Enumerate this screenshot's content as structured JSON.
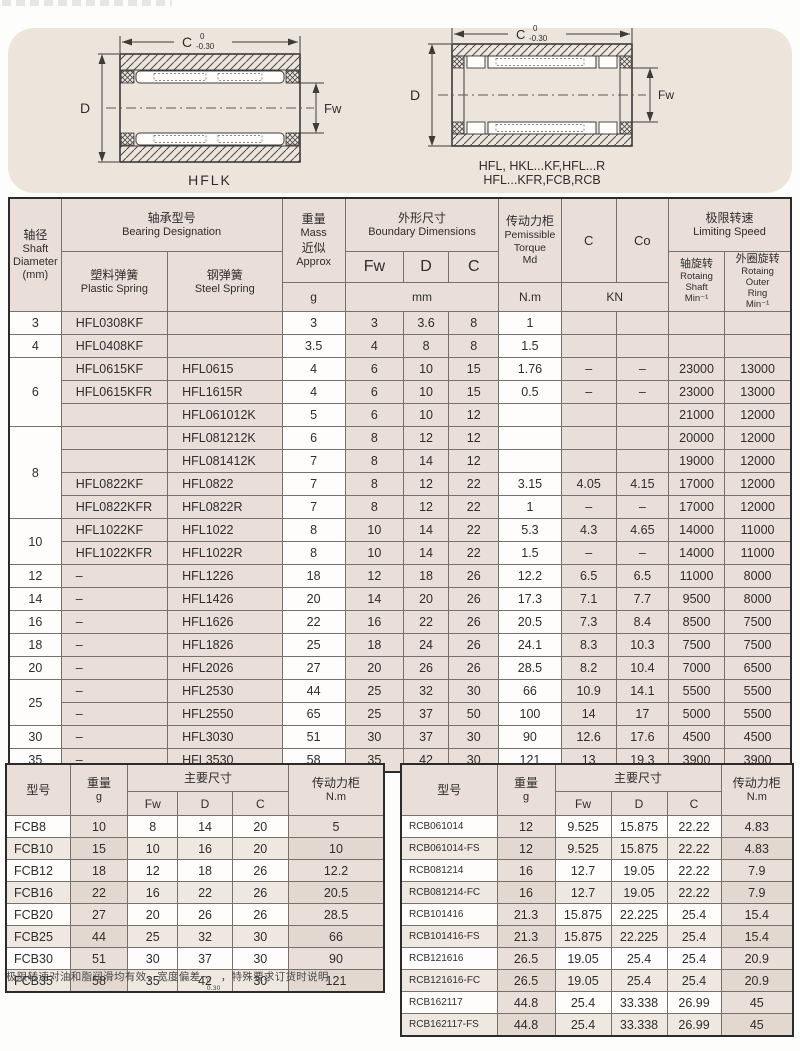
{
  "colors": {
    "panel": "#EDE4DC",
    "pink": "#E9DFD8",
    "white": "#FEFDFC",
    "border_outer": "#2B2B2B",
    "border_inner": "#76716C"
  },
  "diagrams": {
    "left": {
      "label": "HFLK",
      "dim_c": "C",
      "tol_top": "0",
      "tol_bottom": "-0.30",
      "dim_d": "D",
      "dim_fw": "Fw"
    },
    "right": {
      "label_line1": "HFL, HKL...KF,HFL...R",
      "label_line2": "HFL...KFR,FCB,RCB",
      "dim_c": "C",
      "tol_top": "0",
      "tol_bottom": "-0.30",
      "dim_d": "D",
      "dim_fw": "Fw"
    }
  },
  "main_table": {
    "header": {
      "shaft_cn": "轴径",
      "shaft_en1": "Shaft",
      "shaft_en2": "Diameter",
      "shaft_en3": "(mm)",
      "designation_cn": "轴承型号",
      "designation_en": "Bearing Designation",
      "plastic_cn": "塑料弹簧",
      "plastic_en": "Plastic Spring",
      "steel_cn": "钢弹簧",
      "steel_en": "Steel Spring",
      "mass_cn": "重量",
      "mass_en": "Mass",
      "mass_cn2": "近似",
      "mass_en2": "Approx",
      "mass_unit": "g",
      "dims_cn": "外形尺寸",
      "dims_en": "Boundary Dimensions",
      "fw": "Fw",
      "d": "D",
      "c": "C",
      "dims_unit": "mm",
      "torque_cn": "传动力柜",
      "torque_en1": "Pemissible",
      "torque_en2": "Torque",
      "torque_en3": "Md",
      "torque_unit": "N.m",
      "c_dyn": "C",
      "c_stat": "Co",
      "load_unit": "KN",
      "speed_cn": "极限转速",
      "speed_en": "Limiting Speed",
      "speed_shaft_cn": "轴旋转",
      "speed_shaft_en1": "Rotaing",
      "speed_shaft_en2": "Shaft",
      "speed_shaft_en3": "Min⁻¹",
      "speed_ring_cn": "外圈旋转",
      "speed_ring_en1": "Rotaing",
      "speed_ring_en2": "Outer",
      "speed_ring_en3": "Ring",
      "speed_ring_en4": "Min⁻¹"
    },
    "groups": [
      {
        "shaft": "3",
        "rows": [
          [
            "HFL0308KF",
            "",
            "3",
            "3",
            "3.6",
            "8",
            "1",
            "",
            "",
            "",
            ""
          ]
        ]
      },
      {
        "shaft": "4",
        "rows": [
          [
            "HFL0408KF",
            "",
            "3.5",
            "4",
            "8",
            "8",
            "1.5",
            "",
            "",
            "",
            ""
          ]
        ]
      },
      {
        "shaft": "6",
        "rows": [
          [
            "HFL0615KF",
            "HFL0615",
            "4",
            "6",
            "10",
            "15",
            "1.76",
            "–",
            "–",
            "23000",
            "13000"
          ],
          [
            "HFL0615KFR",
            "HFL1615R",
            "4",
            "6",
            "10",
            "15",
            "0.5",
            "–",
            "–",
            "23000",
            "13000"
          ],
          [
            "",
            "HFL061012K",
            "5",
            "6",
            "10",
            "12",
            "",
            "",
            "",
            "21000",
            "12000"
          ]
        ]
      },
      {
        "shaft": "8",
        "rows": [
          [
            "",
            "HFL081212K",
            "6",
            "8",
            "12",
            "12",
            "",
            "",
            "",
            "20000",
            "12000"
          ],
          [
            "",
            "HFL081412K",
            "7",
            "8",
            "14",
            "12",
            "",
            "",
            "",
            "19000",
            "12000"
          ],
          [
            "HFL0822KF",
            "HFL0822",
            "7",
            "8",
            "12",
            "22",
            "3.15",
            "4.05",
            "4.15",
            "17000",
            "12000"
          ],
          [
            "HFL0822KFR",
            "HFL0822R",
            "7",
            "8",
            "12",
            "22",
            "1",
            "–",
            "–",
            "17000",
            "12000"
          ]
        ]
      },
      {
        "shaft": "10",
        "rows": [
          [
            "HFL1022KF",
            "HFL1022",
            "8",
            "10",
            "14",
            "22",
            "5.3",
            "4.3",
            "4.65",
            "14000",
            "11000"
          ],
          [
            "HFL1022KFR",
            "HFL1022R",
            "8",
            "10",
            "14",
            "22",
            "1.5",
            "–",
            "–",
            "14000",
            "11000"
          ]
        ]
      },
      {
        "shaft": "12",
        "rows": [
          [
            "–",
            "HFL1226",
            "18",
            "12",
            "18",
            "26",
            "12.2",
            "6.5",
            "6.5",
            "11000",
            "8000"
          ]
        ]
      },
      {
        "shaft": "14",
        "rows": [
          [
            "–",
            "HFL1426",
            "20",
            "14",
            "20",
            "26",
            "17.3",
            "7.1",
            "7.7",
            "9500",
            "8000"
          ]
        ]
      },
      {
        "shaft": "16",
        "rows": [
          [
            "–",
            "HFL1626",
            "22",
            "16",
            "22",
            "26",
            "20.5",
            "7.3",
            "8.4",
            "8500",
            "7500"
          ]
        ]
      },
      {
        "shaft": "18",
        "rows": [
          [
            "–",
            "HFL1826",
            "25",
            "18",
            "24",
            "26",
            "24.1",
            "8.3",
            "10.3",
            "7500",
            "7500"
          ]
        ]
      },
      {
        "shaft": "20",
        "rows": [
          [
            "–",
            "HFL2026",
            "27",
            "20",
            "26",
            "26",
            "28.5",
            "8.2",
            "10.4",
            "7000",
            "6500"
          ]
        ]
      },
      {
        "shaft": "25",
        "rows": [
          [
            "–",
            "HFL2530",
            "44",
            "25",
            "32",
            "30",
            "66",
            "10.9",
            "14.1",
            "5500",
            "5500"
          ],
          [
            "–",
            "HFL2550",
            "65",
            "25",
            "37",
            "50",
            "100",
            "14",
            "17",
            "5000",
            "5500"
          ]
        ]
      },
      {
        "shaft": "30",
        "rows": [
          [
            "–",
            "HFL3030",
            "51",
            "30",
            "37",
            "30",
            "90",
            "12.6",
            "17.6",
            "4500",
            "4500"
          ]
        ]
      },
      {
        "shaft": "35",
        "rows": [
          [
            "–",
            "HFL3530",
            "58",
            "35",
            "42",
            "30",
            "121",
            "13",
            "19.3",
            "3900",
            "3900"
          ]
        ]
      }
    ]
  },
  "fcb_table": {
    "header": {
      "model": "型号",
      "weight_cn": "重量",
      "weight_unit": "g",
      "dims": "主要尺寸",
      "fw": "Fw",
      "d": "D",
      "c": "C",
      "torque_cn": "传动力柜",
      "torque_unit": "N.m"
    },
    "rows": [
      [
        "FCB8",
        "10",
        "8",
        "14",
        "20",
        "5"
      ],
      [
        "FCB10",
        "15",
        "10",
        "16",
        "20",
        "10"
      ],
      [
        "FCB12",
        "18",
        "12",
        "18",
        "26",
        "12.2"
      ],
      [
        "FCB16",
        "22",
        "16",
        "22",
        "26",
        "20.5"
      ],
      [
        "FCB20",
        "27",
        "20",
        "26",
        "26",
        "28.5"
      ],
      [
        "FCB25",
        "44",
        "25",
        "32",
        "30",
        "66"
      ],
      [
        "FCB30",
        "51",
        "30",
        "37",
        "30",
        "90"
      ],
      [
        "FCB35",
        "58",
        "35",
        "42",
        "30",
        "121"
      ]
    ]
  },
  "rcb_table": {
    "header": {
      "model": "型号",
      "weight_cn": "重量",
      "weight_unit": "g",
      "dims": "主要尺寸",
      "fw": "Fw",
      "d": "D",
      "c": "C",
      "torque_cn": "传动力柜",
      "torque_unit": "N.m"
    },
    "rows": [
      [
        "RCB061014",
        "12",
        "9.525",
        "15.875",
        "22.22",
        "4.83"
      ],
      [
        "RCB061014-FS",
        "12",
        "9.525",
        "15.875",
        "22.22",
        "4.83"
      ],
      [
        "RCB081214",
        "16",
        "12.7",
        "19.05",
        "22.22",
        "7.9"
      ],
      [
        "RCB081214-FC",
        "16",
        "12.7",
        "19.05",
        "22.22",
        "7.9"
      ],
      [
        "RCB101416",
        "21.3",
        "15.875",
        "22.225",
        "25.4",
        "15.4"
      ],
      [
        "RCB101416-FS",
        "21.3",
        "15.875",
        "22.225",
        "25.4",
        "15.4"
      ],
      [
        "RCB121616",
        "26.5",
        "19.05",
        "25.4",
        "25.4",
        "20.9"
      ],
      [
        "RCB121616-FC",
        "26.5",
        "19.05",
        "25.4",
        "25.4",
        "20.9"
      ],
      [
        "RCB162117",
        "44.8",
        "25.4",
        "33.338",
        "26.99",
        "45"
      ],
      [
        "RCB162117-FS",
        "44.8",
        "25.4",
        "33.338",
        "26.99",
        "45"
      ]
    ]
  },
  "note": {
    "pre": "极限转速对油和脂润滑均有效，宽度偏差−",
    "tol_top": "0",
    "tol_bottom": "0.30",
    "post": "，特殊要求订货时说明"
  }
}
